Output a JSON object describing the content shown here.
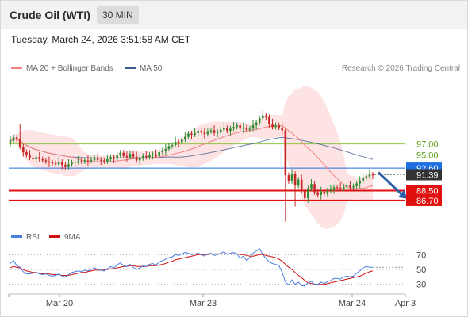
{
  "header": {
    "title": "Crude Oil (WTI)",
    "timeframe": "30 MIN",
    "timestamp": "Tuesday, March 24, 2026 3:51:58 AM CET"
  },
  "legend": {
    "ma20_label": "MA 20 + Bollinger Bands",
    "ma50_label": "MA 50",
    "credit": "Research © 2026 Trading Central"
  },
  "rsi_legend": {
    "rsi_label": "RSI",
    "ma_label": "9MA"
  },
  "colors": {
    "bull_candle": "#2e8b2e",
    "bear_candle": "#c62828",
    "ma20": "#f08080",
    "ma50": "#3a5c8c",
    "bollinger_fill": "#fde3e3",
    "resistance": "#8dc63f",
    "support": "#e01010",
    "current_price": "#1e6fe0",
    "rsi": "#4a7fe0",
    "rsi_ma": "#d01010",
    "arrow": "#2a5fa8"
  },
  "chart_data": {
    "type": "candlestick",
    "x_ticks": [
      "Mar 20",
      "Mar 23",
      "Mar 24",
      "Apr 3"
    ],
    "y_range": [
      82.5,
      108.8
    ],
    "price_levels": [
      {
        "label": "97.00",
        "value": 97.0,
        "kind": "resistance"
      },
      {
        "label": "95.00",
        "value": 95.0,
        "kind": "resistance"
      },
      {
        "label": "92.60",
        "value": 92.6,
        "kind": "current"
      },
      {
        "label": "91.39",
        "value": 91.39,
        "kind": "last"
      },
      {
        "label": "88.50",
        "value": 88.5,
        "kind": "support"
      },
      {
        "label": "86.70",
        "value": 86.7,
        "kind": "support"
      }
    ],
    "price_close": [
      97.6,
      98.2,
      97.8,
      96.5,
      95.5,
      95.0,
      94.5,
      94.2,
      94.6,
      94.2,
      94.0,
      93.8,
      93.6,
      93.5,
      93.3,
      93.7,
      93.2,
      92.8,
      93.3,
      93.6,
      93.7,
      93.9,
      93.8,
      94.0,
      93.9,
      94.1,
      94.4,
      94.1,
      94.0,
      93.8,
      94.2,
      94.6,
      94.3,
      94.9,
      95.4,
      94.8,
      94.6,
      95.2,
      94.7,
      94.0,
      94.4,
      94.8,
      94.6,
      95.0,
      95.1,
      94.8,
      95.5,
      95.8,
      96.1,
      96.6,
      96.8,
      97.4,
      97.3,
      97.8,
      98.3,
      98.9,
      98.7,
      99.0,
      99.4,
      99.1,
      98.8,
      99.3,
      99.5,
      99.0,
      99.2,
      99.6,
      99.9,
      99.4,
      99.8,
      100.1,
      100.4,
      99.8,
      100.0,
      99.6,
      99.8,
      100.4,
      100.9,
      101.7,
      102.2,
      101.9,
      100.7,
      100.1,
      100.4,
      100.0,
      99.5,
      91.3,
      90.2,
      91.5,
      89.4,
      90.5,
      88.4,
      87.1,
      88.9,
      89.7,
      88.2,
      87.7,
      88.3,
      87.9,
      88.5,
      88.7,
      89.1,
      89.0,
      88.8,
      89.2,
      89.4,
      89.1,
      89.3,
      89.8,
      90.2,
      90.9,
      91.1,
      91.4,
      91.39
    ],
    "rsi_range": [
      20,
      80
    ],
    "rsi_ticks": [
      70,
      50,
      30
    ],
    "rsi": [
      58,
      62,
      55,
      53,
      47,
      44,
      44,
      45,
      46,
      44,
      43,
      44,
      42,
      41,
      42,
      44,
      41,
      40,
      43,
      46,
      47,
      48,
      47,
      49,
      48,
      50,
      52,
      50,
      49,
      48,
      51,
      54,
      52,
      56,
      59,
      55,
      54,
      57,
      53,
      50,
      52,
      55,
      54,
      57,
      58,
      56,
      60,
      62,
      64,
      66,
      67,
      70,
      69,
      71,
      73,
      72,
      70,
      71,
      72,
      70,
      68,
      71,
      72,
      69,
      70,
      72,
      74,
      70,
      72,
      73,
      71,
      65,
      68,
      62,
      66,
      72,
      75,
      78,
      70,
      65,
      60,
      58,
      57,
      55,
      46,
      33,
      29,
      36,
      30,
      33,
      28,
      28,
      32,
      34,
      30,
      30,
      33,
      31,
      34,
      35,
      38,
      38,
      37,
      40,
      41,
      40,
      41,
      45,
      48,
      52,
      54,
      53,
      53
    ],
    "rsi_ma9": [
      52,
      54,
      53,
      52,
      50,
      48,
      47,
      46,
      46,
      45,
      44,
      44,
      44,
      43,
      43,
      43,
      42,
      42,
      42,
      43,
      44,
      45,
      46,
      46,
      47,
      48,
      49,
      49,
      49,
      49,
      50,
      51,
      51,
      52,
      53,
      54,
      54,
      55,
      55,
      54,
      54,
      54,
      54,
      55,
      55,
      55,
      56,
      57,
      58,
      60,
      61,
      63,
      64,
      65,
      66,
      67,
      68,
      69,
      70,
      70,
      70,
      70,
      71,
      71,
      71,
      71,
      71,
      71,
      71,
      71,
      71,
      70,
      70,
      69,
      68,
      68,
      69,
      70,
      70,
      69,
      68,
      67,
      66,
      64,
      61,
      57,
      53,
      50,
      46,
      42,
      39,
      35,
      32,
      31,
      30,
      30,
      30,
      30,
      31,
      32,
      33,
      34,
      35,
      36,
      37,
      38,
      39,
      40,
      41,
      43,
      45,
      47,
      48
    ]
  }
}
